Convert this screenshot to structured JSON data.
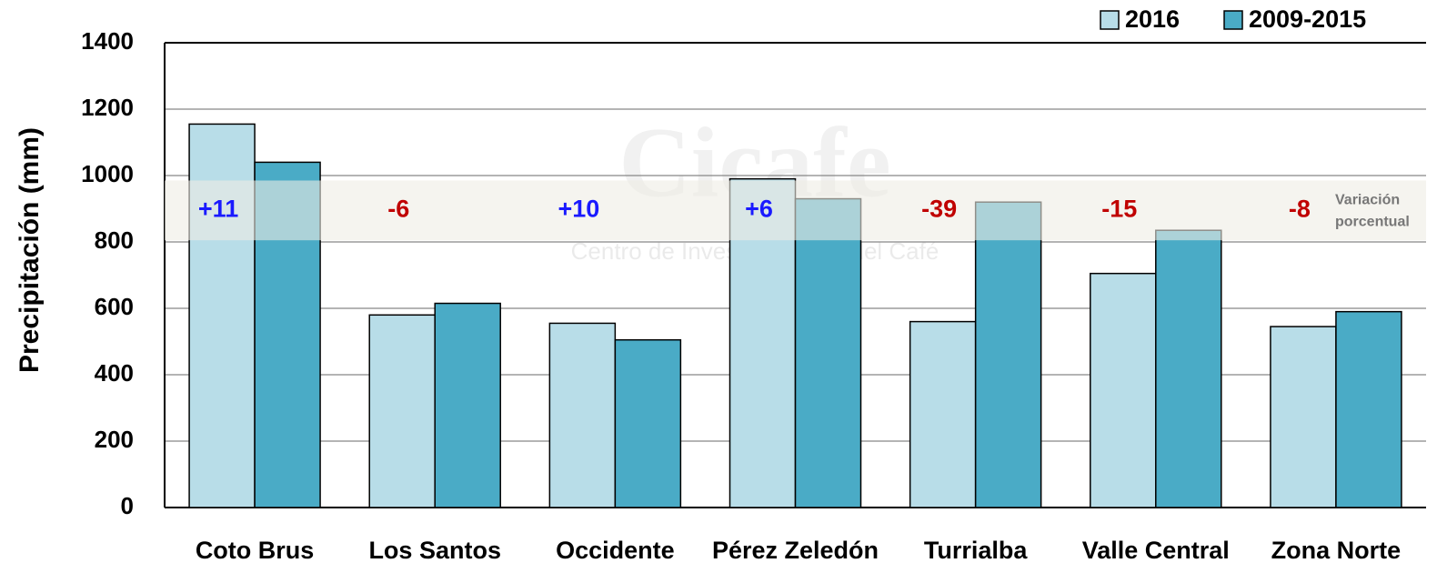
{
  "chart_data": {
    "type": "bar",
    "y_label": "Precipitación (mm)",
    "categories": [
      "Coto Brus",
      "Los Santos",
      "Occidente",
      "Pérez Zeledón",
      "Turrialba",
      "Valle Central",
      "Zona Norte"
    ],
    "series": [
      {
        "name": "2016",
        "color": "#b8dde8",
        "values": [
          1155,
          580,
          555,
          990,
          560,
          705,
          545
        ]
      },
      {
        "name": "2009-2015",
        "color": "#4aabc6",
        "values": [
          1040,
          615,
          505,
          930,
          920,
          835,
          590
        ]
      }
    ],
    "ylim": [
      0,
      1400
    ],
    "yticks": [
      0,
      200,
      400,
      600,
      800,
      1000,
      1200,
      1400
    ],
    "grid": true,
    "legend": "top-right",
    "annotations": {
      "labels": [
        "+11",
        "-6",
        "+10",
        "+6",
        "-39",
        "-15",
        "-8"
      ],
      "colors": [
        "#1a1aff",
        "#c00000",
        "#1a1aff",
        "#1a1aff",
        "#c00000",
        "#c00000",
        "#c00000"
      ],
      "band_title": [
        "Variación",
        "porcentual"
      ],
      "band_range": [
        805,
        985
      ],
      "band_color": "#eeede4"
    },
    "watermark": [
      "Cicafe",
      "Centro de Investigaciones del Café"
    ]
  }
}
